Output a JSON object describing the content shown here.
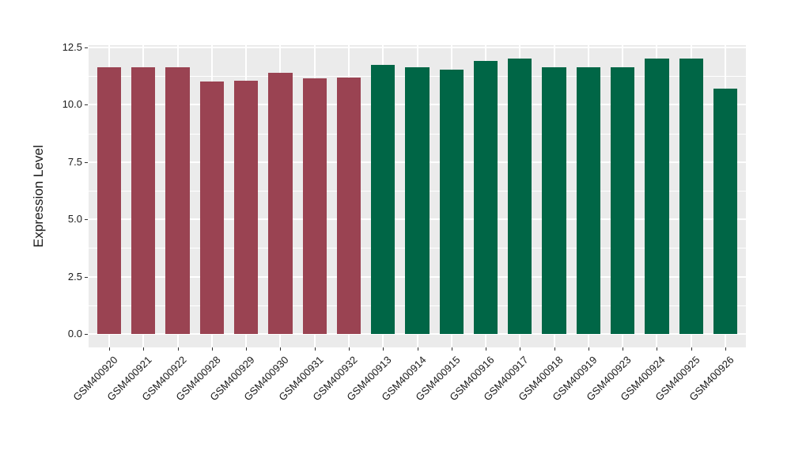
{
  "chart_data": {
    "type": "bar",
    "title": "",
    "xlabel": "",
    "ylabel": "Expression Level",
    "ylim": [
      0,
      12.5
    ],
    "yticks": [
      0,
      2.5,
      5,
      7.5,
      10,
      12.5
    ],
    "ytick_labels": [
      "0.0",
      "2.5",
      "5.0",
      "7.5",
      "10.0",
      "12.5"
    ],
    "grid": "white major+minor horizontal and major vertical gridlines on grey panel",
    "legend_position": "none",
    "bar_width_fraction": 0.7,
    "categories": [
      "GSM400920",
      "GSM400921",
      "GSM400922",
      "GSM400928",
      "GSM400929",
      "GSM400930",
      "GSM400931",
      "GSM400932",
      "GSM400913",
      "GSM400914",
      "GSM400915",
      "GSM400916",
      "GSM400917",
      "GSM400918",
      "GSM400919",
      "GSM400923",
      "GSM400924",
      "GSM400925",
      "GSM400926"
    ],
    "values": [
      11.65,
      11.65,
      11.65,
      11.0,
      11.05,
      11.4,
      11.15,
      11.2,
      11.75,
      11.65,
      11.55,
      11.9,
      12.0,
      11.65,
      11.65,
      11.65,
      12.0,
      12.0,
      10.7
    ],
    "groups": [
      "group1",
      "group1",
      "group1",
      "group1",
      "group1",
      "group1",
      "group1",
      "group1",
      "group2",
      "group2",
      "group2",
      "group2",
      "group2",
      "group2",
      "group2",
      "group2",
      "group2",
      "group2",
      "group2"
    ],
    "group_colors": {
      "group1": "#9A4352",
      "group2": "#006646"
    },
    "colors": {
      "figure_background": "#FFFFFF",
      "panel_background": "#EBEBEB",
      "gridline": "#FFFFFF",
      "axis_text": "#1A1A1A",
      "tick_mark": "#333333"
    }
  }
}
